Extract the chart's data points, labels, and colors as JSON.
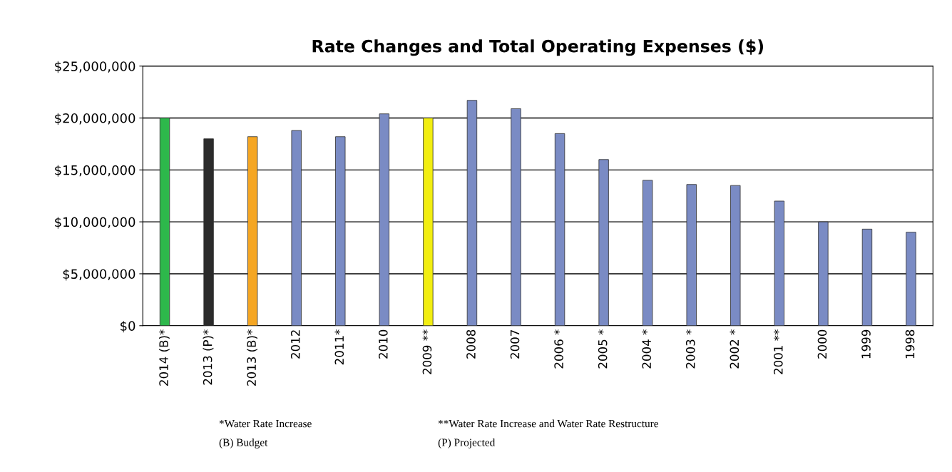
{
  "chart_data": {
    "type": "bar",
    "title": "Rate Changes and Total Operating Expenses ($)",
    "categories": [
      "2014 (B)*",
      "2013 (P)*",
      "2013 (B)*",
      "2012",
      "2011*",
      "2010",
      "2009 **",
      "2008",
      "2007",
      "2006 *",
      "2005 *",
      "2004 *",
      "2003 *",
      "2002 *",
      "2001 **",
      "2000",
      "1999",
      "1998"
    ],
    "values": [
      20000000,
      18000000,
      18200000,
      18800000,
      18200000,
      20400000,
      20000000,
      21700000,
      20900000,
      18500000,
      16000000,
      14000000,
      13600000,
      13500000,
      12000000,
      10000000,
      9300000,
      9000000
    ],
    "colors": [
      "#2db84b",
      "#2b2b2b",
      "#f5a623",
      "#7a8bc4",
      "#7a8bc4",
      "#7a8bc4",
      "#f2ee10",
      "#7a8bc4",
      "#7a8bc4",
      "#7a8bc4",
      "#7a8bc4",
      "#7a8bc4",
      "#7a8bc4",
      "#7a8bc4",
      "#7a8bc4",
      "#7a8bc4",
      "#7a8bc4",
      "#7a8bc4"
    ],
    "ylim": [
      0,
      25000000
    ],
    "yticks": [
      {
        "value": 0,
        "label": "$0"
      },
      {
        "value": 5000000,
        "label": "$5,000,000"
      },
      {
        "value": 10000000,
        "label": "$10,000,000"
      },
      {
        "value": 15000000,
        "label": "$15,000,000"
      },
      {
        "value": 20000000,
        "label": "$20,000,000"
      },
      {
        "value": 25000000,
        "label": "$25,000,000"
      }
    ],
    "grid": "y",
    "annotations": [
      "*Water Rate Increase",
      "(B) Budget",
      "**Water Rate Increase and Water Rate Restructure",
      "(P) Projected"
    ]
  }
}
